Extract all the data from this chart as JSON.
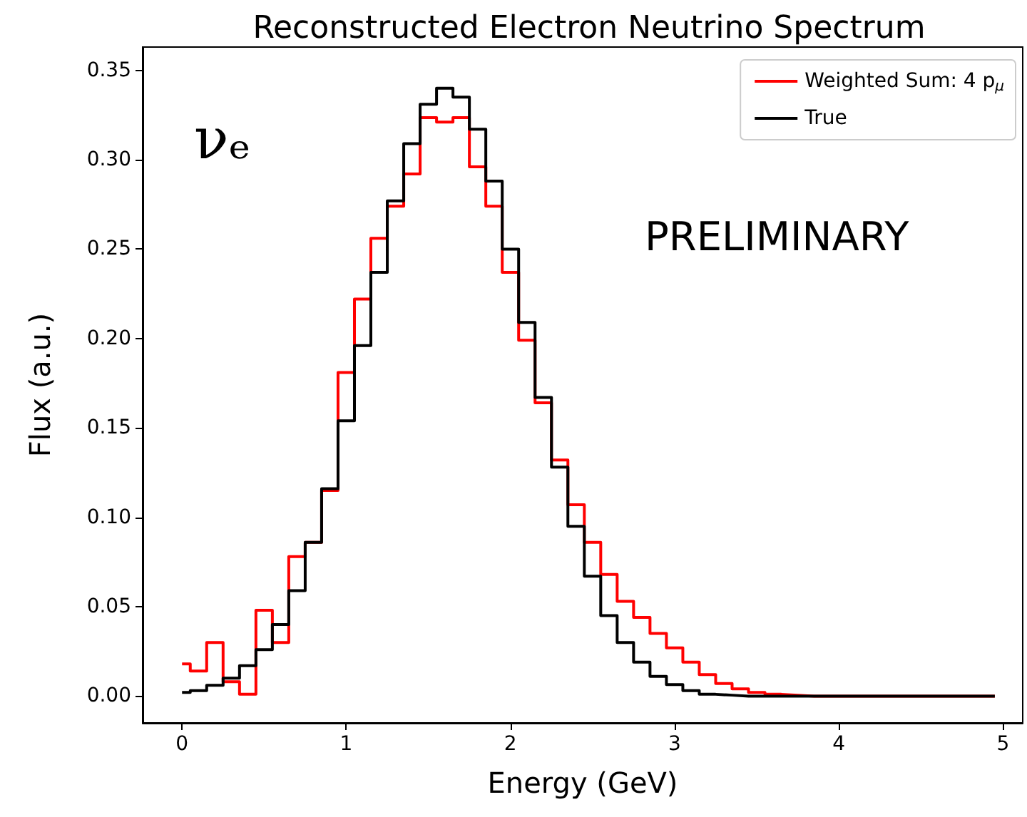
{
  "chart_data": {
    "type": "histogram",
    "title": "Reconstructed Electron Neutrino Spectrum",
    "xlabel": "Energy (GeV)",
    "ylabel": "Flux (a.u.)",
    "annotations": [
      "νₑ",
      "PRELIMINARY"
    ],
    "bins": [
      0,
      0.05,
      0.15,
      0.25,
      0.35,
      0.45,
      0.55,
      0.65,
      0.75,
      0.85,
      0.95,
      1.05,
      1.15,
      1.25,
      1.35,
      1.45,
      1.55,
      1.65,
      1.75,
      1.85,
      1.95,
      2.05,
      2.15,
      2.25,
      2.35,
      2.45,
      2.55,
      2.65,
      2.75,
      2.85,
      2.95,
      3.05,
      3.15,
      3.25,
      3.35,
      3.45,
      3.55,
      3.65,
      3.75,
      3.85,
      3.95,
      4.05,
      4.15,
      4.25,
      4.35,
      4.45,
      4.55,
      4.65,
      4.75,
      4.85,
      4.95
    ],
    "series": [
      {
        "name": "Weighted Sum: 4 p$_{μ}$",
        "color": "#ff0000",
        "values": [
          0.018,
          0.014,
          0.03,
          0.008,
          0.001,
          0.048,
          0.03,
          0.078,
          0.086,
          0.115,
          0.181,
          0.222,
          0.256,
          0.274,
          0.292,
          0.3235,
          0.321,
          0.3235,
          0.296,
          0.274,
          0.237,
          0.199,
          0.164,
          0.132,
          0.107,
          0.086,
          0.068,
          0.053,
          0.044,
          0.035,
          0.027,
          0.019,
          0.012,
          0.007,
          0.004,
          0.002,
          0.001,
          0.0005,
          0,
          0,
          0,
          0,
          0,
          0,
          0,
          0,
          0,
          0,
          0,
          0
        ]
      },
      {
        "name": "True",
        "color": "#000000",
        "values": [
          0.002,
          0.003,
          0.006,
          0.01,
          0.017,
          0.026,
          0.04,
          0.059,
          0.086,
          0.116,
          0.154,
          0.196,
          0.237,
          0.277,
          0.309,
          0.331,
          0.34,
          0.335,
          0.317,
          0.288,
          0.25,
          0.209,
          0.167,
          0.128,
          0.095,
          0.067,
          0.045,
          0.03,
          0.019,
          0.011,
          0.0064,
          0.003,
          0.001,
          0.0005,
          0,
          0,
          0,
          0,
          0,
          0,
          0,
          0,
          0,
          0,
          0,
          0,
          0,
          0,
          0,
          0
        ]
      }
    ],
    "xlim": [
      -0.24,
      5.12
    ],
    "xticks": [
      0,
      1,
      2,
      3,
      4,
      5
    ],
    "ylim": [
      -0.015,
      0.363
    ],
    "yticks": [
      {
        "value": 0,
        "label": "0.00"
      },
      {
        "value": 0.05,
        "label": "0.05"
      },
      {
        "value": 0.1,
        "label": "0.10"
      },
      {
        "value": 0.15,
        "label": "0.15"
      },
      {
        "value": 0.2,
        "label": "0.20"
      },
      {
        "value": 0.25,
        "label": "0.25"
      },
      {
        "value": 0.3,
        "label": "0.30"
      },
      {
        "value": 0.35,
        "label": "0.35"
      }
    ],
    "grid": false,
    "legend": "top right"
  }
}
